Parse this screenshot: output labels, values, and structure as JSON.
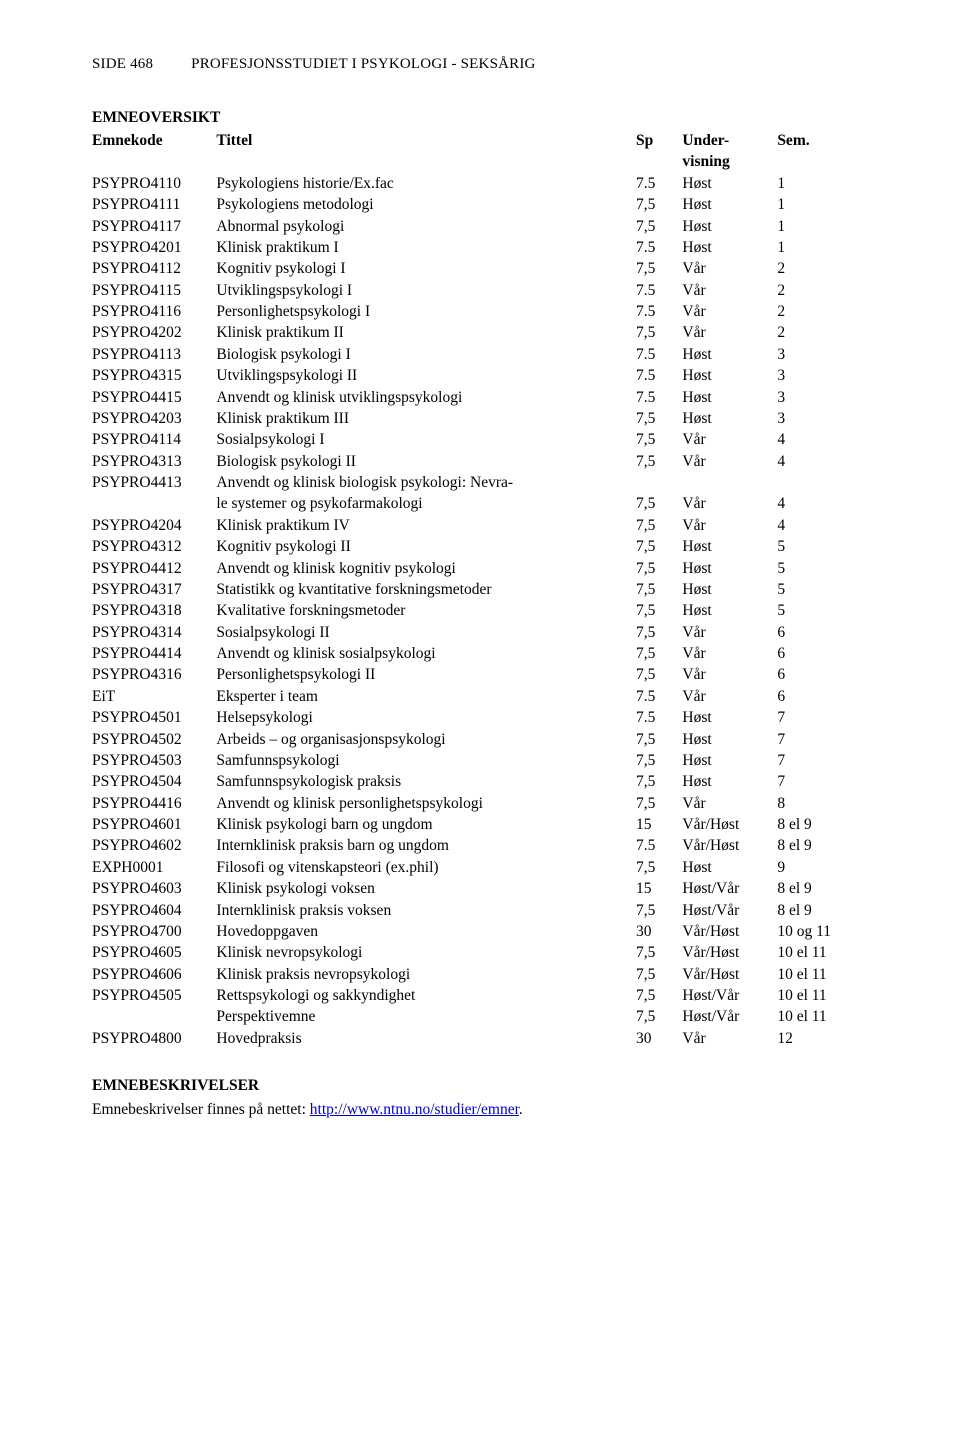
{
  "header": {
    "side_label": "SIDE",
    "page_number": "468",
    "program": "PROFESJONSSTUDIET I PSYKOLOGI - SEKSÅRIG"
  },
  "section1_title": "EMNEOVERSIKT",
  "table": {
    "head": {
      "emnekode": "Emnekode",
      "tittel": "Tittel",
      "sp": "Sp",
      "under": "Under-",
      "visning": "visning",
      "sem": "Sem."
    },
    "rows": [
      {
        "code": "PSYPRO4110",
        "title": "Psykologiens historie/Ex.fac",
        "sp": "7.5",
        "teach": "Høst",
        "sem": "1"
      },
      {
        "code": "PSYPRO4111",
        "title": "Psykologiens metodologi",
        "sp": "7,5",
        "teach": "Høst",
        "sem": "1"
      },
      {
        "code": "PSYPRO4117",
        "title": "Abnormal psykologi",
        "sp": "7,5",
        "teach": "Høst",
        "sem": "1"
      },
      {
        "code": "PSYPRO4201",
        "title": "Klinisk praktikum I",
        "sp": "7.5",
        "teach": "Høst",
        "sem": "1"
      },
      {
        "code": "PSYPRO4112",
        "title": "Kognitiv psykologi I",
        "sp": "7,5",
        "teach": "Vår",
        "sem": "2"
      },
      {
        "code": "PSYPRO4115",
        "title": "Utviklingspsykologi I",
        "sp": "7.5",
        "teach": "Vår",
        "sem": "2"
      },
      {
        "code": "PSYPRO4116",
        "title": "Personlighetspsykologi I",
        "sp": "7.5",
        "teach": "Vår",
        "sem": "2"
      },
      {
        "code": "PSYPRO4202",
        "title": "Klinisk praktikum II",
        "sp": "7,5",
        "teach": "Vår",
        "sem": "2"
      },
      {
        "code": "PSYPRO4113",
        "title": "Biologisk psykologi I",
        "sp": "7.5",
        "teach": "Høst",
        "sem": "3"
      },
      {
        "code": "PSYPRO4315",
        "title": "Utviklingspsykologi II",
        "sp": "7.5",
        "teach": "Høst",
        "sem": "3"
      },
      {
        "code": "PSYPRO4415",
        "title": "Anvendt og klinisk utviklingspsykologi",
        "sp": "7.5",
        "teach": "Høst",
        "sem": "3"
      },
      {
        "code": "PSYPRO4203",
        "title": "Klinisk praktikum III",
        "sp": "7,5",
        "teach": "Høst",
        "sem": "3"
      },
      {
        "code": "PSYPRO4114",
        "title": "Sosialpsykologi I",
        "sp": "7,5",
        "teach": "Vår",
        "sem": "4"
      },
      {
        "code": "PSYPRO4313",
        "title": "Biologisk psykologi II",
        "sp": "7,5",
        "teach": "Vår",
        "sem": "4"
      },
      {
        "code": "PSYPRO4413",
        "title": "Anvendt og klinisk biologisk psykologi: Nevra-",
        "sp": "",
        "teach": "",
        "sem": ""
      },
      {
        "code": "",
        "title": "le systemer og psykofarmakologi",
        "sp": "7,5",
        "teach": "Vår",
        "sem": "4"
      },
      {
        "code": "PSYPRO4204",
        "title": "Klinisk praktikum IV",
        "sp": "7,5",
        "teach": "Vår",
        "sem": "4"
      },
      {
        "code": "PSYPRO4312",
        "title": "Kognitiv psykologi II",
        "sp": "7,5",
        "teach": "Høst",
        "sem": "5"
      },
      {
        "code": "PSYPRO4412",
        "title": "Anvendt og klinisk kognitiv psykologi",
        "sp": "7,5",
        "teach": "Høst",
        "sem": "5"
      },
      {
        "code": "PSYPRO4317",
        "title": "Statistikk og kvantitative forskningsmetoder",
        "sp": "7,5",
        "teach": "Høst",
        "sem": "5"
      },
      {
        "code": "PSYPRO4318",
        "title": "Kvalitative forskningsmetoder",
        "sp": "7,5",
        "teach": "Høst",
        "sem": "5"
      },
      {
        "code": "PSYPRO4314",
        "title": "Sosialpsykologi II",
        "sp": "7,5",
        "teach": "Vår",
        "sem": "6"
      },
      {
        "code": "PSYPRO4414",
        "title": "Anvendt og klinisk sosialpsykologi",
        "sp": "7,5",
        "teach": "Vår",
        "sem": "6"
      },
      {
        "code": "PSYPRO4316",
        "title": "Personlighetspsykologi II",
        "sp": "7,5",
        "teach": "Vår",
        "sem": "6"
      },
      {
        "code": "EiT",
        "title": "Eksperter i team",
        "sp": "7.5",
        "teach": "Vår",
        "sem": "6"
      },
      {
        "code": "PSYPRO4501",
        "title": "Helsepsykologi",
        "sp": "7.5",
        "teach": "Høst",
        "sem": "7"
      },
      {
        "code": "PSYPRO4502",
        "title": "Arbeids – og organisasjonspsykologi",
        "sp": "7,5",
        "teach": "Høst",
        "sem": "7"
      },
      {
        "code": "PSYPRO4503",
        "title": "Samfunnspsykologi",
        "sp": "7,5",
        "teach": "Høst",
        "sem": "7"
      },
      {
        "code": "PSYPRO4504",
        "title": "Samfunnspsykologisk praksis",
        "sp": "7,5",
        "teach": "Høst",
        "sem": "7"
      },
      {
        "code": "PSYPRO4416",
        "title": "Anvendt og klinisk personlighetspsykologi",
        "sp": "7,5",
        "teach": "Vår",
        "sem": "8"
      },
      {
        "code": "PSYPRO4601",
        "title": "Klinisk psykologi barn og ungdom",
        "sp": "15",
        "teach": "Vår/Høst",
        "sem": "8 el 9"
      },
      {
        "code": "PSYPRO4602",
        "title": "Internklinisk praksis barn og ungdom",
        "sp": "7.5",
        "teach": "Vår/Høst",
        "sem": "8 el 9"
      },
      {
        "code": "EXPH0001",
        "title": "Filosofi og vitenskapsteori (ex.phil)",
        "sp": "7,5",
        "teach": "Høst",
        "sem": "9"
      },
      {
        "code": "PSYPRO4603",
        "title": "Klinisk psykologi voksen",
        "sp": "15",
        "teach": "Høst/Vår",
        "sem": "8 el 9"
      },
      {
        "code": "PSYPRO4604",
        "title": "Internklinisk praksis voksen",
        "sp": "7,5",
        "teach": "Høst/Vår",
        "sem": "8 el 9"
      },
      {
        "code": "PSYPRO4700",
        "title": "Hovedoppgaven",
        "sp": "30",
        "teach": "Vår/Høst",
        "sem": "10 og 11"
      },
      {
        "code": "PSYPRO4605",
        "title": "Klinisk nevropsykologi",
        "sp": "7,5",
        "teach": "Vår/Høst",
        "sem": "10 el 11"
      },
      {
        "code": "PSYPRO4606",
        "title": "Klinisk praksis nevropsykologi",
        "sp": "7,5",
        "teach": "Vår/Høst",
        "sem": "10 el 11"
      },
      {
        "code": "PSYPRO4505",
        "title": "Rettspsykologi og sakkyndighet",
        "sp": "7,5",
        "teach": "Høst/Vår",
        "sem": "10 el 11"
      },
      {
        "code": "",
        "title": "Perspektivemne",
        "sp": "7,5",
        "teach": "Høst/Vår",
        "sem": "10 el 11"
      },
      {
        "code": "PSYPRO4800",
        "title": "Hovedpraksis",
        "sp": "30",
        "teach": "Vår",
        "sem": "12"
      }
    ]
  },
  "section2_title": "EMNEBESKRIVELSER",
  "footer": {
    "text": "Emnebeskrivelser finnes på nettet: ",
    "link_text": "http://www.ntnu.no/studier/emner",
    "dot": "."
  }
}
